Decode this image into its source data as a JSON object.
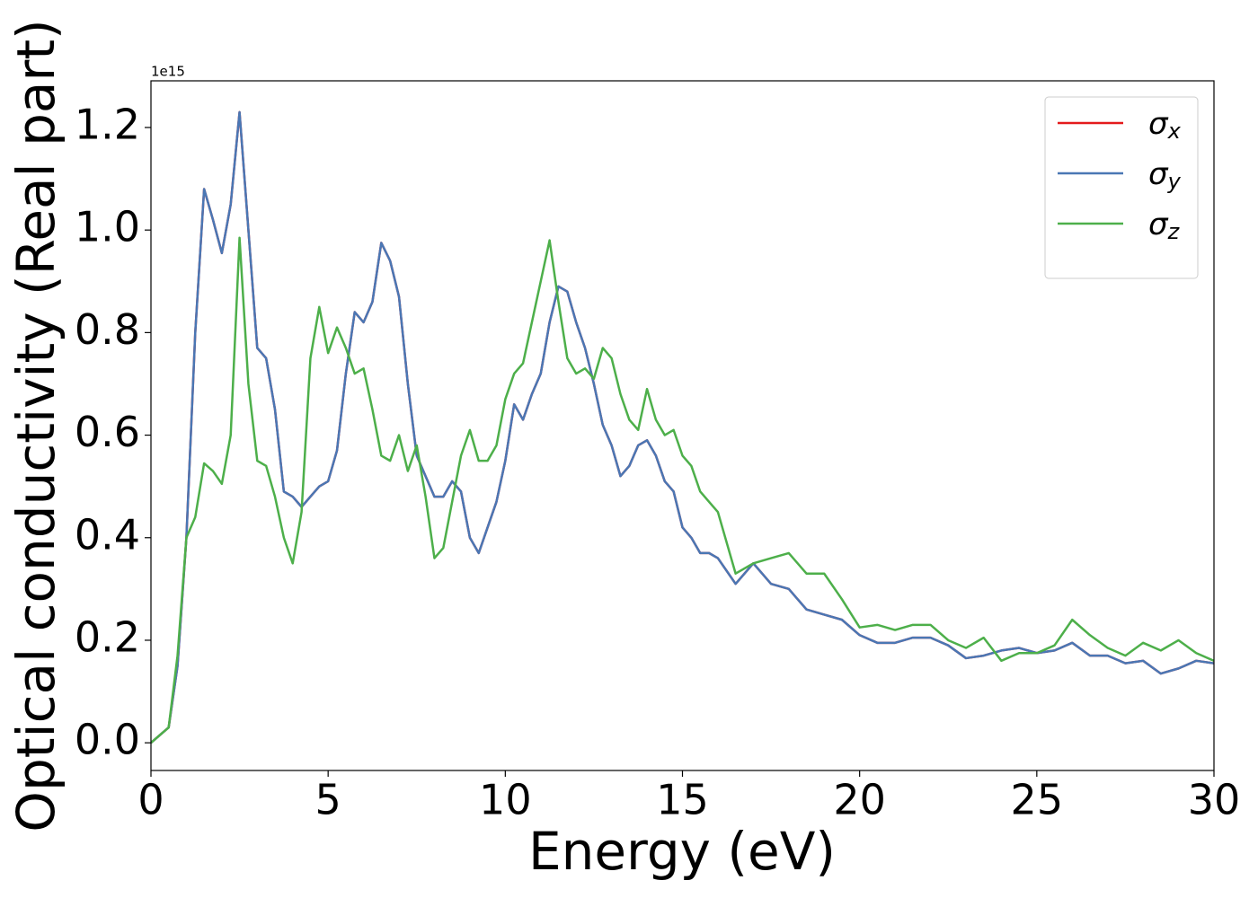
{
  "chart_data": {
    "type": "line",
    "offset_label": "1e15",
    "x_label": "Energy (eV)",
    "y_label": "Optical conductivity (Real part)",
    "xlim": [
      0,
      30
    ],
    "xticks": [
      0,
      5,
      10,
      15,
      20,
      25,
      30
    ],
    "ylim": [
      -0.054,
      1.291
    ],
    "yticks": [
      {
        "value": 0,
        "label": "0.0"
      },
      0.2,
      0.4,
      0.6,
      0.8,
      {
        "value": 1,
        "label": "1.0"
      },
      1.2
    ],
    "legend": "upper right",
    "x": [
      0,
      0.5,
      0.75,
      1,
      1.25,
      1.5,
      1.75,
      2,
      2.25,
      2.5,
      2.75,
      3,
      3.25,
      3.5,
      3.75,
      4,
      4.25,
      4.5,
      4.75,
      5,
      5.25,
      5.5,
      5.75,
      6,
      6.25,
      6.5,
      6.75,
      7,
      7.25,
      7.5,
      7.75,
      8,
      8.25,
      8.5,
      8.75,
      9,
      9.25,
      9.5,
      9.75,
      10,
      10.25,
      10.5,
      10.75,
      11,
      11.25,
      11.5,
      11.75,
      12,
      12.25,
      12.5,
      12.75,
      13,
      13.25,
      13.5,
      13.75,
      14,
      14.25,
      14.5,
      14.75,
      15,
      15.25,
      15.5,
      15.75,
      16,
      16.5,
      17,
      17.5,
      18,
      18.5,
      19,
      19.5,
      20,
      20.5,
      21,
      21.5,
      22,
      22.5,
      23,
      23.5,
      24,
      24.5,
      25,
      25.5,
      26,
      26.5,
      27,
      27.5,
      28,
      28.5,
      29,
      29.5,
      30
    ],
    "series": [
      {
        "name": "σx",
        "color": "#e41a1c",
        "values": [
          0,
          0.03,
          0.15,
          0.4,
          0.8,
          1.08,
          1.02,
          0.955,
          1.05,
          1.23,
          1.0,
          0.77,
          0.75,
          0.65,
          0.49,
          0.48,
          0.46,
          0.48,
          0.5,
          0.51,
          0.57,
          0.72,
          0.84,
          0.82,
          0.86,
          0.975,
          0.94,
          0.87,
          0.7,
          0.56,
          0.52,
          0.48,
          0.48,
          0.51,
          0.49,
          0.4,
          0.37,
          0.42,
          0.47,
          0.55,
          0.66,
          0.63,
          0.68,
          0.72,
          0.82,
          0.89,
          0.88,
          0.82,
          0.77,
          0.7,
          0.62,
          0.58,
          0.52,
          0.54,
          0.58,
          0.59,
          0.56,
          0.51,
          0.49,
          0.42,
          0.4,
          0.37,
          0.37,
          0.36,
          0.31,
          0.35,
          0.31,
          0.3,
          0.26,
          0.25,
          0.24,
          0.21,
          0.195,
          0.195,
          0.205,
          0.205,
          0.19,
          0.165,
          0.17,
          0.18,
          0.185,
          0.175,
          0.18,
          0.195,
          0.17,
          0.17,
          0.155,
          0.16,
          0.135,
          0.145,
          0.16,
          0.155
        ]
      },
      {
        "name": "σy",
        "color": "#4a77b4",
        "values": [
          0,
          0.03,
          0.15,
          0.4,
          0.8,
          1.08,
          1.02,
          0.955,
          1.05,
          1.23,
          1.0,
          0.77,
          0.75,
          0.65,
          0.49,
          0.48,
          0.46,
          0.48,
          0.5,
          0.51,
          0.57,
          0.72,
          0.84,
          0.82,
          0.86,
          0.975,
          0.94,
          0.87,
          0.7,
          0.56,
          0.52,
          0.48,
          0.48,
          0.51,
          0.49,
          0.4,
          0.37,
          0.42,
          0.47,
          0.55,
          0.66,
          0.63,
          0.68,
          0.72,
          0.82,
          0.89,
          0.88,
          0.82,
          0.77,
          0.7,
          0.62,
          0.58,
          0.52,
          0.54,
          0.58,
          0.59,
          0.56,
          0.51,
          0.49,
          0.42,
          0.4,
          0.37,
          0.37,
          0.36,
          0.31,
          0.35,
          0.31,
          0.3,
          0.26,
          0.25,
          0.24,
          0.21,
          0.195,
          0.195,
          0.205,
          0.205,
          0.19,
          0.165,
          0.17,
          0.18,
          0.185,
          0.175,
          0.18,
          0.195,
          0.17,
          0.17,
          0.155,
          0.16,
          0.135,
          0.145,
          0.16,
          0.155
        ]
      },
      {
        "name": "σz",
        "color": "#4daf4a",
        "values": [
          0,
          0.03,
          0.17,
          0.4,
          0.44,
          0.545,
          0.53,
          0.505,
          0.6,
          0.985,
          0.7,
          0.55,
          0.54,
          0.48,
          0.4,
          0.35,
          0.45,
          0.75,
          0.85,
          0.76,
          0.81,
          0.77,
          0.72,
          0.73,
          0.65,
          0.56,
          0.55,
          0.6,
          0.53,
          0.58,
          0.48,
          0.36,
          0.38,
          0.47,
          0.56,
          0.61,
          0.55,
          0.55,
          0.58,
          0.67,
          0.72,
          0.74,
          0.82,
          0.9,
          0.98,
          0.86,
          0.75,
          0.72,
          0.73,
          0.71,
          0.77,
          0.75,
          0.68,
          0.63,
          0.61,
          0.69,
          0.63,
          0.6,
          0.61,
          0.56,
          0.54,
          0.49,
          0.47,
          0.45,
          0.33,
          0.35,
          0.36,
          0.37,
          0.33,
          0.33,
          0.28,
          0.225,
          0.23,
          0.22,
          0.23,
          0.23,
          0.2,
          0.185,
          0.205,
          0.16,
          0.175,
          0.175,
          0.19,
          0.24,
          0.21,
          0.185,
          0.17,
          0.195,
          0.18,
          0.2,
          0.175,
          0.16
        ]
      }
    ]
  }
}
